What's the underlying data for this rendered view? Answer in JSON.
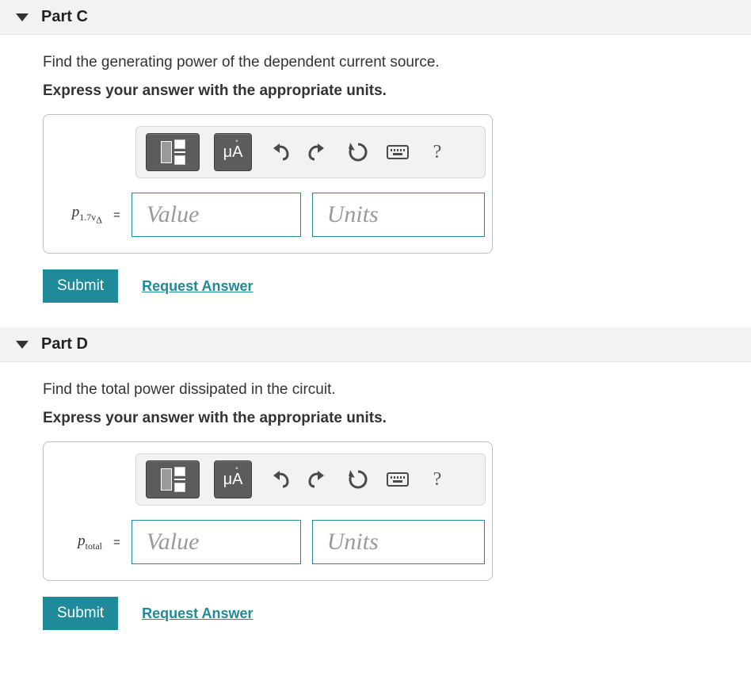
{
  "colors": {
    "accent": "#1f8a99",
    "header_bg": "#f2f2f2",
    "toolbar_bg": "#f2f2f2",
    "tool_button_bg": "#5c5c5c",
    "border": "#bfbfbf",
    "placeholder": "#9a9a9a",
    "text": "#333333"
  },
  "parts": [
    {
      "title": "Part C",
      "prompt": "Find the generating power of the dependent current source.",
      "instruction": "Express your answer with the appropriate units.",
      "variable_html": "p<sub>1.7v<sub>Δ</sub></sub>",
      "value_placeholder": "Value",
      "units_placeholder": "Units",
      "submit_label": "Submit",
      "request_label": "Request Answer"
    },
    {
      "title": "Part D",
      "prompt": "Find the total power dissipated in the circuit.",
      "instruction": "Express your answer with the appropriate units.",
      "variable_html": "p<sub>total</sub>",
      "value_placeholder": "Value",
      "units_placeholder": "Units",
      "submit_label": "Submit",
      "request_label": "Request Answer"
    }
  ],
  "toolbar": {
    "template_tooltip": "Templates",
    "symbols_label": "μÅ",
    "undo": "↶",
    "redo": "↷",
    "reset": "⟲",
    "keyboard": "keyboard",
    "help": "?"
  }
}
